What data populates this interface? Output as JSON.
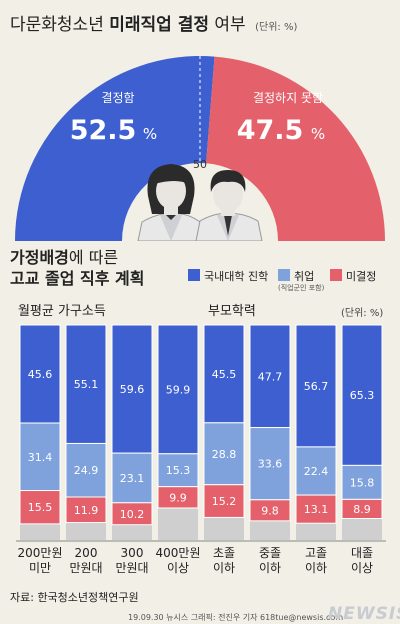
{
  "header": {
    "title_plain": "다문화청소년",
    "title_strong": "미래직업 결정",
    "title_tail": "여부",
    "unit": "(단위: %)"
  },
  "gauge": {
    "left_label": "결정함",
    "left_value": "52.5",
    "right_label": "결정하지 못함",
    "right_value": "47.5",
    "percent_sign": "%",
    "midpoint_label": "50",
    "colors": {
      "left": "#3d5fd0",
      "right": "#e4606a"
    }
  },
  "section": {
    "line1_strong": "가정배경",
    "line1_rest": "에 따른",
    "line2": "고교 졸업 직후 계획"
  },
  "legend": {
    "items": [
      {
        "label": "국내대학 진학",
        "color": "#3d5fd0"
      },
      {
        "label": "취업",
        "note": "(직업군인 포함)",
        "color": "#7fa2dd"
      },
      {
        "label": "미결정",
        "color": "#e4606a"
      }
    ]
  },
  "panels": {
    "income_title": "월평균 가구소득",
    "education_title": "부모학력",
    "unit": "(단위: %)"
  },
  "chart_data": [
    {
      "type": "bar",
      "stacked": true,
      "title": "월평균 가구소득",
      "categories": [
        "200만원\n미만",
        "200\n만원대",
        "300\n만원대",
        "400만원\n이상"
      ],
      "series": [
        {
          "name": "국내대학 진학",
          "color": "#3d5fd0",
          "values": [
            45.6,
            55.1,
            59.6,
            59.9
          ]
        },
        {
          "name": "취업",
          "color": "#7fa2dd",
          "values": [
            31.4,
            24.9,
            23.1,
            15.3
          ]
        },
        {
          "name": "미결정",
          "color": "#e4606a",
          "values": [
            15.5,
            11.9,
            10.2,
            9.9
          ]
        }
      ],
      "ylim": [
        0,
        100
      ]
    },
    {
      "type": "bar",
      "stacked": true,
      "title": "부모학력",
      "categories": [
        "초졸\n이하",
        "중졸\n이하",
        "고졸\n이하",
        "대졸\n이상"
      ],
      "series": [
        {
          "name": "국내대학 진학",
          "color": "#3d5fd0",
          "values": [
            45.5,
            47.7,
            56.7,
            65.3
          ]
        },
        {
          "name": "취업",
          "color": "#7fa2dd",
          "values": [
            28.8,
            33.6,
            22.4,
            15.8
          ]
        },
        {
          "name": "미결정",
          "color": "#e4606a",
          "values": [
            15.2,
            9.8,
            13.1,
            8.9
          ]
        }
      ],
      "ylim": [
        0,
        100
      ]
    }
  ],
  "footer": {
    "source": "자료: 한국청소년정책연구원",
    "credit": "19.09.30 뉴시스 그래픽: 전진우 기자 618tue@newsis.com",
    "logo": "NEWSIS"
  }
}
